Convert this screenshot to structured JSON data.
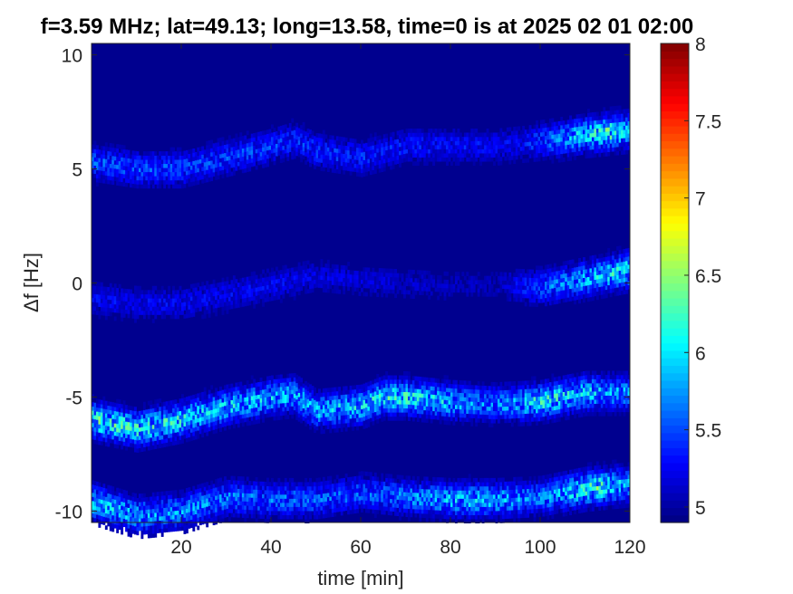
{
  "chart_data": {
    "type": "heatmap",
    "title": "f=3.59 MHz;  lat=49.13; long=13.58, time=0 is at 2025 02 01 02:00",
    "xlabel": "time [min]",
    "ylabel": "Δf [Hz]",
    "xlim": [
      0,
      120
    ],
    "ylim": [
      -10.5,
      10.5
    ],
    "xticks": [
      20,
      40,
      60,
      80,
      100,
      120
    ],
    "yticks": [
      -10,
      -5,
      0,
      5,
      10
    ],
    "xtick_labels": [
      "20",
      "40",
      "60",
      "80",
      "100",
      "120"
    ],
    "ytick_labels": [
      "-10",
      "-5",
      "0",
      "5",
      "10"
    ],
    "colorbar": {
      "colormap": "jet",
      "clim": [
        4.9,
        8
      ],
      "ticks": [
        5,
        5.5,
        6,
        6.5,
        7,
        7.5,
        8
      ],
      "tick_labels": [
        "5",
        "5.5",
        "6",
        "6.5",
        "7",
        "7.5",
        "8"
      ]
    },
    "background_value": 4.9,
    "grid": false,
    "bands": [
      {
        "name": "",
        "track": [
          [
            0,
            5.3
          ],
          [
            10,
            5.0
          ],
          [
            20,
            5.0
          ],
          [
            30,
            5.5
          ],
          [
            40,
            6.0
          ],
          [
            45,
            6.3
          ],
          [
            50,
            5.8
          ],
          [
            60,
            5.5
          ],
          [
            70,
            6.0
          ],
          [
            80,
            6.0
          ],
          [
            90,
            6.0
          ],
          [
            100,
            6.2
          ],
          [
            110,
            6.5
          ],
          [
            120,
            6.7
          ]
        ],
        "intensity": [
          [
            0,
            5.6
          ],
          [
            40,
            5.5
          ],
          [
            70,
            5.4
          ],
          [
            95,
            5.3
          ],
          [
            105,
            5.8
          ],
          [
            115,
            6.3
          ],
          [
            120,
            5.9
          ]
        ]
      },
      {
        "name": "",
        "track": [
          [
            0,
            -0.7
          ],
          [
            10,
            -0.9
          ],
          [
            20,
            -0.9
          ],
          [
            30,
            -0.5
          ],
          [
            40,
            -0.1
          ],
          [
            50,
            0.3
          ],
          [
            60,
            0.1
          ],
          [
            70,
            0.0
          ],
          [
            80,
            -0.1
          ],
          [
            90,
            -0.1
          ],
          [
            100,
            -0.2
          ],
          [
            110,
            0.2
          ],
          [
            120,
            0.6
          ]
        ],
        "intensity": [
          [
            0,
            5.3
          ],
          [
            40,
            5.3
          ],
          [
            60,
            5.2
          ],
          [
            90,
            5.1
          ],
          [
            100,
            5.6
          ],
          [
            110,
            5.9
          ],
          [
            120,
            6.2
          ]
        ]
      },
      {
        "name": "",
        "track": [
          [
            0,
            -6.0
          ],
          [
            10,
            -6.4
          ],
          [
            20,
            -6.0
          ],
          [
            30,
            -5.4
          ],
          [
            40,
            -5.0
          ],
          [
            45,
            -4.9
          ],
          [
            50,
            -5.6
          ],
          [
            60,
            -5.4
          ],
          [
            65,
            -5.0
          ],
          [
            70,
            -5.0
          ],
          [
            80,
            -5.2
          ],
          [
            90,
            -5.3
          ],
          [
            100,
            -5.2
          ],
          [
            110,
            -4.8
          ],
          [
            120,
            -4.8
          ]
        ],
        "intensity": [
          [
            0,
            6.3
          ],
          [
            30,
            6.0
          ],
          [
            50,
            5.9
          ],
          [
            70,
            6.2
          ],
          [
            90,
            5.7
          ],
          [
            100,
            6.2
          ],
          [
            110,
            6.0
          ],
          [
            120,
            5.8
          ]
        ]
      },
      {
        "name": "",
        "track": [
          [
            0,
            -9.6
          ],
          [
            10,
            -10.2
          ],
          [
            20,
            -10.0
          ],
          [
            30,
            -9.4
          ],
          [
            40,
            -9.5
          ],
          [
            50,
            -9.5
          ],
          [
            60,
            -9.2
          ],
          [
            70,
            -9.4
          ],
          [
            80,
            -9.5
          ],
          [
            90,
            -9.5
          ],
          [
            100,
            -9.4
          ],
          [
            110,
            -9.0
          ],
          [
            120,
            -8.8
          ]
        ],
        "intensity": [
          [
            0,
            6.0
          ],
          [
            30,
            5.7
          ],
          [
            60,
            5.6
          ],
          [
            85,
            6.0
          ],
          [
            100,
            5.7
          ],
          [
            112,
            6.3
          ],
          [
            120,
            5.8
          ]
        ]
      }
    ]
  }
}
